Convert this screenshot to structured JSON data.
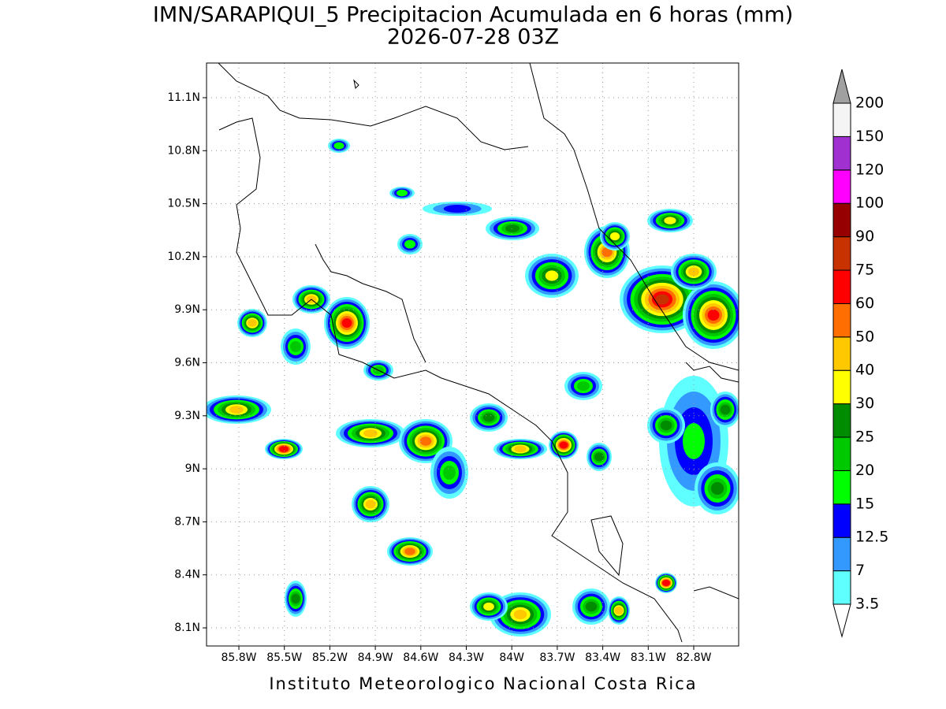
{
  "title": "IMN/SARAPIQUI_5 Precipitacion Acumulada en 6 horas (mm)",
  "subtitle": "2026-07-28 03Z",
  "footer": "Instituto Meteorologico Nacional Costa Rica",
  "lat_labels": [
    "11.1N",
    "10.8N",
    "10.5N",
    "10.2N",
    "9.9N",
    "9.6N",
    "9.3N",
    "9N",
    "8.7N",
    "8.4N",
    "8.1N"
  ],
  "lon_labels": [
    "85.8W",
    "85.5W",
    "85.2W",
    "84.9W",
    "84.6W",
    "84.3W",
    "84W",
    "83.7W",
    "83.4W",
    "83.1W",
    "82.8W"
  ],
  "colorbar": {
    "labels": [
      "3.5",
      "7",
      "12.5",
      "15",
      "20",
      "25",
      "30",
      "40",
      "50",
      "60",
      "75",
      "90",
      "100",
      "120",
      "150",
      "200"
    ],
    "colors": [
      "#60ffff",
      "#3399ff",
      "#0000ff",
      "#00ff00",
      "#00c800",
      "#008c00",
      "#ffff00",
      "#ffc800",
      "#ff6e00",
      "#ff0000",
      "#c83200",
      "#960000",
      "#ff00ff",
      "#a030d0",
      "#f4f4f4"
    ],
    "below_color": "#ffffff",
    "above_color": "#a0a0a0"
  }
}
